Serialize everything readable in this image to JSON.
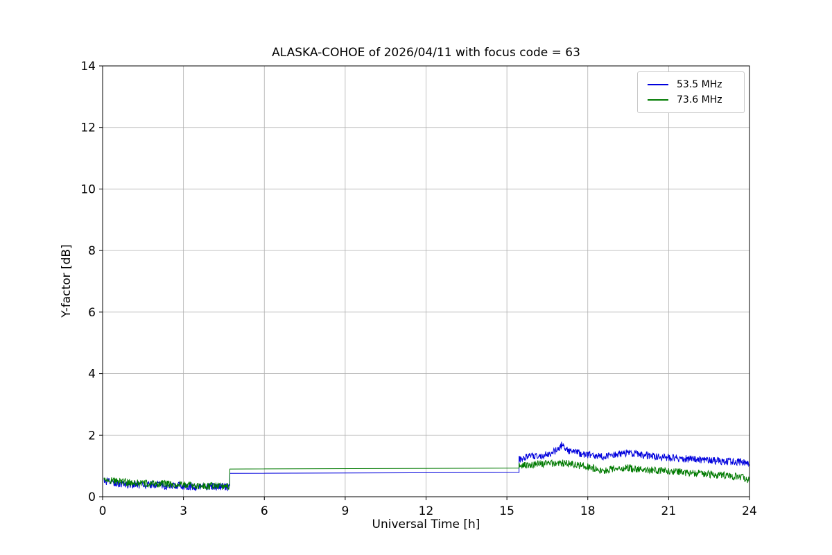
{
  "chart_data": {
    "type": "line",
    "title": "ALASKA-COHOE of 2026/04/11 with focus code = 63",
    "xlabel": "Universal Time [h]",
    "ylabel": "Y-factor [dB]",
    "xlim": [
      0,
      24
    ],
    "ylim": [
      0,
      14
    ],
    "xticks": [
      0,
      3,
      6,
      9,
      12,
      15,
      18,
      21,
      24
    ],
    "yticks": [
      0,
      2,
      4,
      6,
      8,
      10,
      12,
      14
    ],
    "grid": true,
    "grid_color": "#b0b0b0",
    "axis_color": "#000000",
    "background": "#ffffff",
    "legend_position": "upper right",
    "series": [
      {
        "name": "53.5 MHz",
        "color": "#0000dd",
        "noise": 0.12,
        "segments": [
          {
            "noisy": true,
            "points": [
              [
                0.05,
                0.5
              ],
              [
                0.4,
                0.45
              ],
              [
                0.9,
                0.4
              ],
              [
                1.4,
                0.38
              ],
              [
                1.9,
                0.4
              ],
              [
                2.4,
                0.34
              ],
              [
                2.9,
                0.36
              ],
              [
                3.4,
                0.32
              ],
              [
                3.9,
                0.34
              ],
              [
                4.3,
                0.31
              ],
              [
                4.72,
                0.33
              ]
            ]
          },
          {
            "noisy": false,
            "points": [
              [
                4.72,
                0.76
              ],
              [
                15.45,
                0.79
              ]
            ]
          },
          {
            "noisy": true,
            "points": [
              [
                15.45,
                1.22
              ],
              [
                15.7,
                1.3
              ],
              [
                16.1,
                1.32
              ],
              [
                16.5,
                1.36
              ],
              [
                16.8,
                1.48
              ],
              [
                16.95,
                1.6
              ],
              [
                17.05,
                1.7
              ],
              [
                17.2,
                1.52
              ],
              [
                17.5,
                1.45
              ],
              [
                17.9,
                1.38
              ],
              [
                18.3,
                1.3
              ],
              [
                18.7,
                1.32
              ],
              [
                19.1,
                1.38
              ],
              [
                19.5,
                1.43
              ],
              [
                19.9,
                1.38
              ],
              [
                20.3,
                1.33
              ],
              [
                20.8,
                1.28
              ],
              [
                21.3,
                1.25
              ],
              [
                21.8,
                1.22
              ],
              [
                22.3,
                1.2
              ],
              [
                22.8,
                1.17
              ],
              [
                23.3,
                1.14
              ],
              [
                23.7,
                1.12
              ],
              [
                24.0,
                1.1
              ]
            ]
          }
        ]
      },
      {
        "name": "73.6 MHz",
        "color": "#007a00",
        "noise": 0.12,
        "segments": [
          {
            "noisy": true,
            "points": [
              [
                0.05,
                0.55
              ],
              [
                0.5,
                0.5
              ],
              [
                1.0,
                0.46
              ],
              [
                1.5,
                0.43
              ],
              [
                2.0,
                0.43
              ],
              [
                2.5,
                0.4
              ],
              [
                3.0,
                0.38
              ],
              [
                3.5,
                0.36
              ],
              [
                4.0,
                0.35
              ],
              [
                4.4,
                0.34
              ],
              [
                4.72,
                0.34
              ]
            ]
          },
          {
            "noisy": false,
            "points": [
              [
                4.72,
                0.9
              ],
              [
                15.45,
                0.93
              ]
            ]
          },
          {
            "noisy": true,
            "points": [
              [
                15.45,
                1.0
              ],
              [
                15.8,
                1.03
              ],
              [
                16.2,
                1.06
              ],
              [
                16.6,
                1.08
              ],
              [
                17.0,
                1.1
              ],
              [
                17.4,
                1.06
              ],
              [
                17.8,
                1.0
              ],
              [
                18.2,
                0.93
              ],
              [
                18.5,
                0.84
              ],
              [
                18.7,
                0.86
              ],
              [
                19.0,
                0.94
              ],
              [
                19.4,
                0.95
              ],
              [
                19.8,
                0.9
              ],
              [
                20.2,
                0.88
              ],
              [
                20.7,
                0.85
              ],
              [
                21.2,
                0.82
              ],
              [
                21.7,
                0.78
              ],
              [
                22.2,
                0.75
              ],
              [
                22.7,
                0.72
              ],
              [
                23.2,
                0.68
              ],
              [
                23.6,
                0.64
              ],
              [
                23.85,
                0.6
              ],
              [
                24.0,
                0.5
              ]
            ]
          }
        ]
      }
    ]
  }
}
